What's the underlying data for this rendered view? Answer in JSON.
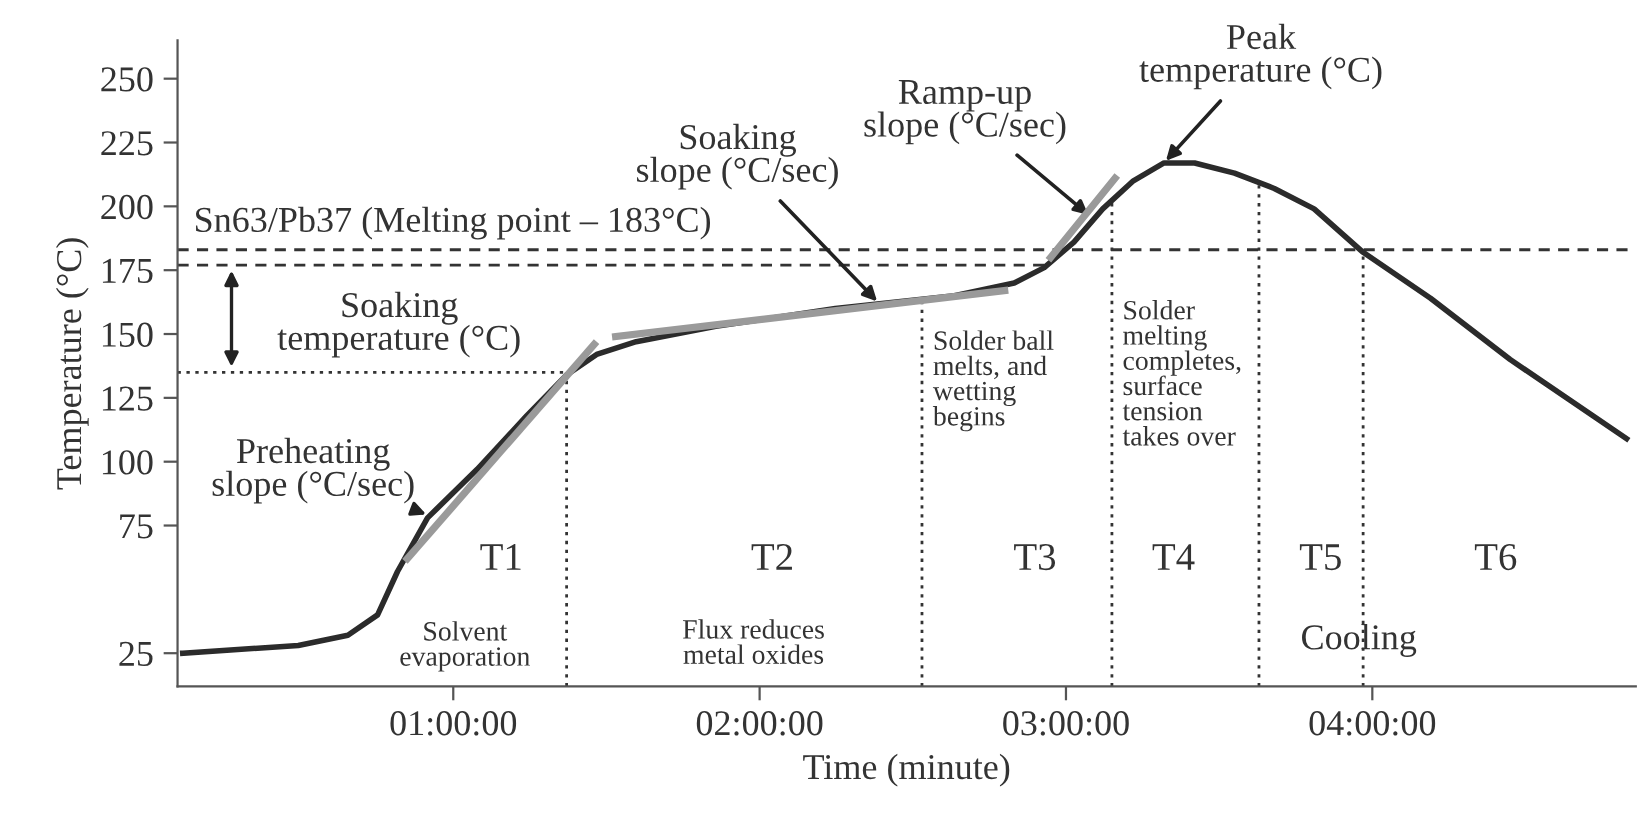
{
  "chart_data": {
    "type": "line",
    "xlabel": "Time (minute)",
    "ylabel": "Temperature (°C)",
    "xlim": [
      0.1,
      4.86
    ],
    "ylim": [
      12,
      265
    ],
    "xticks": [
      {
        "value": 1,
        "label": "01:00:00"
      },
      {
        "value": 2,
        "label": "02:00:00"
      },
      {
        "value": 3,
        "label": "03:00:00"
      },
      {
        "value": 4,
        "label": "04:00:00"
      }
    ],
    "yticks": [
      25,
      75,
      100,
      125,
      150,
      175,
      200,
      225,
      250
    ],
    "grid": false,
    "marker": "none",
    "series": [
      {
        "color": "#2b2b2b",
        "line_style": "solid",
        "x": [
          0.117,
          0.494,
          0.656,
          0.753,
          0.818,
          0.916,
          1.078,
          1.24,
          1.37,
          1.468,
          1.597,
          1.857,
          2.247,
          2.636,
          2.831,
          2.929,
          3.026,
          3.12,
          3.22,
          3.32,
          3.42,
          3.55,
          3.68,
          3.81,
          3.97,
          4.19,
          4.45,
          4.83
        ],
        "values": [
          25,
          28,
          32,
          40,
          57,
          78,
          97,
          118,
          134,
          142,
          147,
          153,
          160,
          165,
          170,
          176,
          186,
          199,
          210,
          217,
          217,
          213,
          207,
          199,
          182,
          164,
          140,
          109
        ]
      },
      {
        "color": "#9a9a9a",
        "line_style": "solid",
        "x": [
          0.85,
          1.46
        ],
        "values": [
          62,
          146
        ]
      },
      {
        "color": "#9a9a9a",
        "line_style": "solid",
        "x": [
          1.53,
          2.8
        ],
        "values": [
          149,
          167
        ]
      },
      {
        "color": "#9a9a9a",
        "line_style": "solid",
        "x": [
          2.95,
          3.16
        ],
        "values": [
          180,
          211
        ]
      }
    ],
    "ref_lines": [
      {
        "axis": "y",
        "value": 183,
        "label": "Sn63/Pb37 (Melting point – 183°C)",
        "line_style": "dashed",
        "color": "#333333"
      },
      {
        "axis": "y",
        "value": 177,
        "line_style": "dashed",
        "color": "#333333"
      },
      {
        "axis": "y",
        "value": 135,
        "line_style": "dotted",
        "color": "#333333"
      },
      {
        "axis": "x",
        "value": 1.37,
        "line_style": "dotted",
        "color": "#333333"
      },
      {
        "axis": "x",
        "value": 2.53,
        "line_style": "dotted",
        "color": "#333333"
      },
      {
        "axis": "x",
        "value": 3.15,
        "line_style": "dotted",
        "color": "#333333"
      },
      {
        "axis": "x",
        "value": 3.63,
        "line_style": "dotted",
        "color": "#333333"
      },
      {
        "axis": "x",
        "value": 3.97,
        "line_style": "dotted",
        "color": "#333333"
      }
    ],
    "annotations": [
      {
        "text": "Preheating\nslope (°C/sec)",
        "x": 0.92,
        "y": 79
      },
      {
        "text": "Soaking\nslope (°C/sec)",
        "x": 2.39,
        "y": 162
      },
      {
        "text": "Ramp-up\nslope (°C/sec)",
        "x": 3.08,
        "y": 196
      },
      {
        "text": "Peak\ntemperature (°C)",
        "x": 3.32,
        "y": 217
      },
      "Soaking\ntemperature (°C)",
      "T1",
      "T2",
      "T3",
      "T4",
      "T5",
      "T6",
      "Solvent\nevaporation",
      "Flux reduces\nmetal oxides",
      "Solder ball\nmelts, and\nwetting\nbegins",
      "Solder\nmelting\ncompletes,\nsurface\ntension\ntakes over",
      "Cooling"
    ]
  }
}
